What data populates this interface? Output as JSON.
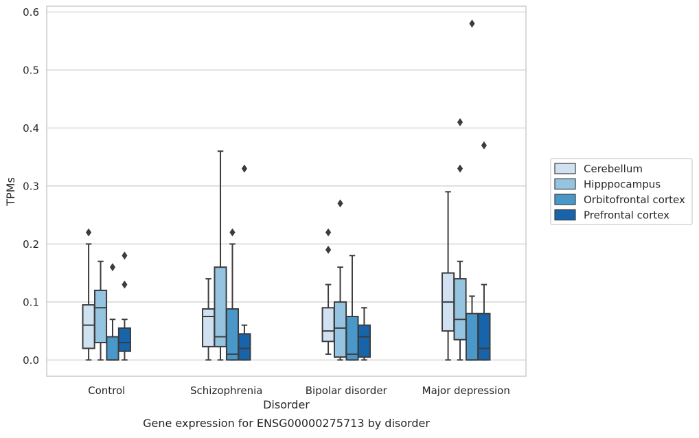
{
  "chart_data": {
    "type": "box",
    "caption": "Gene expression for ENSG00000275713 by disorder",
    "xlabel": "Disorder",
    "ylabel": "TPMs",
    "ylim": [
      -0.028,
      0.61
    ],
    "yticks": [
      "0.0",
      "0.1",
      "0.2",
      "0.3",
      "0.4",
      "0.5",
      "0.6"
    ],
    "grid": "horizontal",
    "legend_position": "right",
    "categories": [
      "Control",
      "Schizophrenia",
      "Bipolar disorder",
      "Major depression"
    ],
    "colors": [
      "#d0e1f2",
      "#94c4df",
      "#4a98c9",
      "#1764ab"
    ],
    "series": [
      {
        "name": "Cerebellum",
        "boxes": [
          {
            "whislo": 0.0,
            "q1": 0.02,
            "med": 0.06,
            "q3": 0.095,
            "whishi": 0.2,
            "fliers": [
              0.22
            ]
          },
          {
            "whislo": 0.0,
            "q1": 0.023,
            "med": 0.075,
            "q3": 0.088,
            "whishi": 0.14,
            "fliers": []
          },
          {
            "whislo": 0.01,
            "q1": 0.032,
            "med": 0.05,
            "q3": 0.09,
            "whishi": 0.13,
            "fliers": [
              0.19,
              0.22
            ]
          },
          {
            "whislo": 0.0,
            "q1": 0.05,
            "med": 0.1,
            "q3": 0.15,
            "whishi": 0.29,
            "fliers": []
          }
        ]
      },
      {
        "name": "Hipppocampus",
        "boxes": [
          {
            "whislo": 0.0,
            "q1": 0.03,
            "med": 0.09,
            "q3": 0.12,
            "whishi": 0.17,
            "fliers": []
          },
          {
            "whislo": 0.0,
            "q1": 0.023,
            "med": 0.04,
            "q3": 0.16,
            "whishi": 0.36,
            "fliers": []
          },
          {
            "whislo": 0.0,
            "q1": 0.005,
            "med": 0.055,
            "q3": 0.1,
            "whishi": 0.16,
            "fliers": [
              0.27
            ]
          },
          {
            "whislo": 0.0,
            "q1": 0.035,
            "med": 0.07,
            "q3": 0.14,
            "whishi": 0.17,
            "fliers": [
              0.33,
              0.41
            ]
          }
        ]
      },
      {
        "name": "Orbitofrontal cortex",
        "boxes": [
          {
            "whislo": 0.0,
            "q1": 0.0,
            "med": 0.0,
            "q3": 0.04,
            "whishi": 0.07,
            "fliers": [
              0.16
            ]
          },
          {
            "whislo": 0.0,
            "q1": 0.0,
            "med": 0.01,
            "q3": 0.088,
            "whishi": 0.2,
            "fliers": [
              0.22
            ]
          },
          {
            "whislo": 0.0,
            "q1": 0.0,
            "med": 0.01,
            "q3": 0.075,
            "whishi": 0.18,
            "fliers": []
          },
          {
            "whislo": 0.0,
            "q1": 0.0,
            "med": 0.0,
            "q3": 0.08,
            "whishi": 0.11,
            "fliers": [
              0.58
            ]
          }
        ]
      },
      {
        "name": "Prefrontal cortex",
        "boxes": [
          {
            "whislo": 0.0,
            "q1": 0.015,
            "med": 0.03,
            "q3": 0.055,
            "whishi": 0.07,
            "fliers": [
              0.13,
              0.18
            ]
          },
          {
            "whislo": 0.0,
            "q1": 0.0,
            "med": 0.02,
            "q3": 0.045,
            "whishi": 0.06,
            "fliers": [
              0.33
            ]
          },
          {
            "whislo": 0.0,
            "q1": 0.005,
            "med": 0.04,
            "q3": 0.06,
            "whishi": 0.09,
            "fliers": []
          },
          {
            "whislo": 0.0,
            "q1": 0.0,
            "med": 0.02,
            "q3": 0.08,
            "whishi": 0.13,
            "fliers": [
              0.37
            ]
          }
        ]
      }
    ]
  }
}
